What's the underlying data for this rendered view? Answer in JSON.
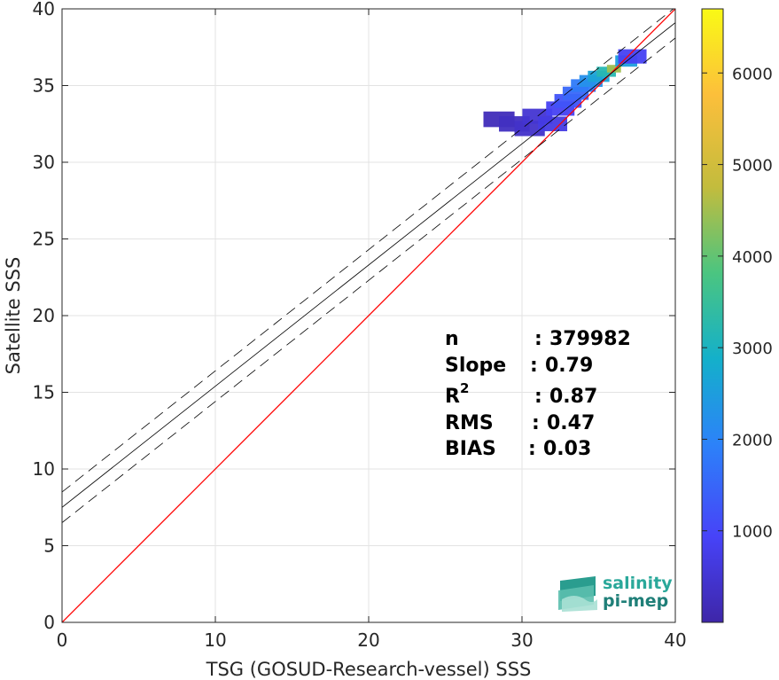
{
  "chart_data": {
    "type": "heatmap",
    "xlabel": "TSG (GOSUD-Research-vessel) SSS",
    "ylabel": "Satellite SSS",
    "xlim": [
      0,
      40
    ],
    "ylim": [
      0,
      40
    ],
    "xticks": [
      "0",
      "10",
      "20",
      "30",
      "40"
    ],
    "yticks": [
      "0",
      "5",
      "10",
      "15",
      "20",
      "25",
      "30",
      "35",
      "40"
    ],
    "grid": true,
    "identity_line": {
      "x": [
        0,
        40
      ],
      "y": [
        0,
        40
      ],
      "color": "#ff0000"
    },
    "regression_line": {
      "slope": 0.79,
      "intercept": 7.5,
      "band": 1.0,
      "color": "#000000"
    },
    "colorbar": {
      "range": [
        0,
        6700
      ],
      "ticks": [
        "1000",
        "2000",
        "3000",
        "4000",
        "5000",
        "6000"
      ],
      "colors": [
        "#3e26a8",
        "#4743f8",
        "#2c82f9",
        "#14b0ca",
        "#4bc580",
        "#c3bc3d",
        "#fcbf3b",
        "#f9fa15"
      ]
    },
    "density_points": [
      {
        "x": 28.5,
        "y": 32.8,
        "count": 200
      },
      {
        "x": 29.5,
        "y": 32.5,
        "count": 300
      },
      {
        "x": 30.5,
        "y": 32.2,
        "count": 400
      },
      {
        "x": 31.0,
        "y": 33.0,
        "count": 500
      },
      {
        "x": 32.0,
        "y": 32.5,
        "count": 700
      },
      {
        "x": 32.5,
        "y": 33.5,
        "count": 900
      },
      {
        "x": 33.0,
        "y": 34.0,
        "count": 1200
      },
      {
        "x": 33.5,
        "y": 34.5,
        "count": 1500
      },
      {
        "x": 34.0,
        "y": 35.0,
        "count": 1800
      },
      {
        "x": 34.5,
        "y": 35.3,
        "count": 2200
      },
      {
        "x": 35.0,
        "y": 35.6,
        "count": 2600
      },
      {
        "x": 35.5,
        "y": 35.9,
        "count": 3200
      },
      {
        "x": 36.0,
        "y": 36.1,
        "count": 4500
      },
      {
        "x": 36.3,
        "y": 36.3,
        "count": 6600
      },
      {
        "x": 36.8,
        "y": 36.6,
        "count": 2500
      },
      {
        "x": 37.2,
        "y": 36.9,
        "count": 900
      }
    ],
    "stats": [
      {
        "label": "n",
        "sep": ": ",
        "value": "379982"
      },
      {
        "label": "Slope",
        "sep": ": ",
        "value": "0.79"
      },
      {
        "label": "R",
        "sup": "2",
        "sep": ": ",
        "value": "0.87"
      },
      {
        "label": "RMS",
        "sep": ": ",
        "value": "0.47"
      },
      {
        "label": "BIAS",
        "sep": ": ",
        "value": "0.03"
      }
    ]
  },
  "logo": {
    "line1": "salinity",
    "line2": "pi-mep",
    "color1": "#2aa89a",
    "color2": "#1f7f78"
  }
}
